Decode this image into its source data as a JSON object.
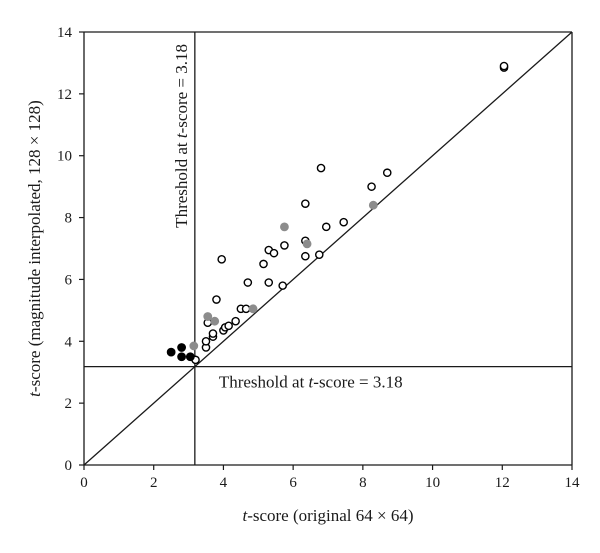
{
  "chart_data": {
    "type": "scatter",
    "xlabel": "t-score (original 64 × 64)",
    "xlabel_italic": "t",
    "xlabel_rest": "-score (original 64 × 64)",
    "ylabel": "t-score (magnitude interpolated, 128 × 128)",
    "ylabel_italic": "t",
    "ylabel_rest": "-score (magnitude interpolated, 128 × 128)",
    "xlim": [
      0,
      14
    ],
    "ylim": [
      0,
      14
    ],
    "x_ticks": [
      "0",
      "2",
      "4",
      "6",
      "8",
      "10",
      "12",
      "14"
    ],
    "y_ticks": [
      "0",
      "2",
      "4",
      "6",
      "8",
      "10",
      "12",
      "14"
    ],
    "grid": false,
    "reference_line": {
      "type": "identity",
      "from": [
        0,
        0
      ],
      "to": [
        14,
        14
      ]
    },
    "threshold": 3.18,
    "threshold_labels": {
      "vertical": {
        "prefix": "Threshold at ",
        "italic": "t",
        "suffix": "-score = 3.18"
      },
      "horizontal": {
        "prefix": "Threshold at ",
        "italic": "t",
        "suffix": "-score = 3.18"
      }
    },
    "series": [
      {
        "style": "open",
        "color": "#000000",
        "points": [
          [
            3.2,
            3.4
          ],
          [
            3.5,
            3.8
          ],
          [
            3.5,
            4.0
          ],
          [
            3.7,
            4.15
          ],
          [
            3.7,
            4.25
          ],
          [
            3.55,
            4.6
          ],
          [
            4.0,
            4.35
          ],
          [
            4.05,
            4.45
          ],
          [
            4.15,
            4.5
          ],
          [
            4.35,
            4.65
          ],
          [
            4.5,
            5.05
          ],
          [
            4.65,
            5.05
          ],
          [
            3.8,
            5.35
          ],
          [
            3.95,
            6.65
          ],
          [
            4.7,
            5.9
          ],
          [
            5.15,
            6.5
          ],
          [
            5.3,
            6.95
          ],
          [
            5.3,
            5.9
          ],
          [
            5.45,
            6.85
          ],
          [
            5.7,
            5.8
          ],
          [
            5.75,
            7.1
          ],
          [
            6.35,
            6.75
          ],
          [
            6.35,
            7.25
          ],
          [
            6.35,
            8.45
          ],
          [
            6.75,
            6.8
          ],
          [
            6.8,
            9.6
          ],
          [
            6.95,
            7.7
          ],
          [
            7.45,
            7.85
          ],
          [
            8.25,
            9.0
          ],
          [
            8.7,
            9.45
          ],
          [
            12.05,
            12.85
          ],
          [
            12.05,
            12.9
          ]
        ]
      },
      {
        "style": "grey",
        "color": "#8c8c8c",
        "points": [
          [
            3.15,
            3.85
          ],
          [
            3.55,
            4.8
          ],
          [
            3.75,
            4.65
          ],
          [
            4.85,
            5.05
          ],
          [
            5.75,
            7.7
          ],
          [
            6.4,
            7.15
          ],
          [
            8.3,
            8.4
          ]
        ]
      },
      {
        "style": "black",
        "color": "#000000",
        "points": [
          [
            2.5,
            3.65
          ],
          [
            2.8,
            3.5
          ],
          [
            2.8,
            3.8
          ],
          [
            3.05,
            3.5
          ]
        ]
      }
    ]
  }
}
